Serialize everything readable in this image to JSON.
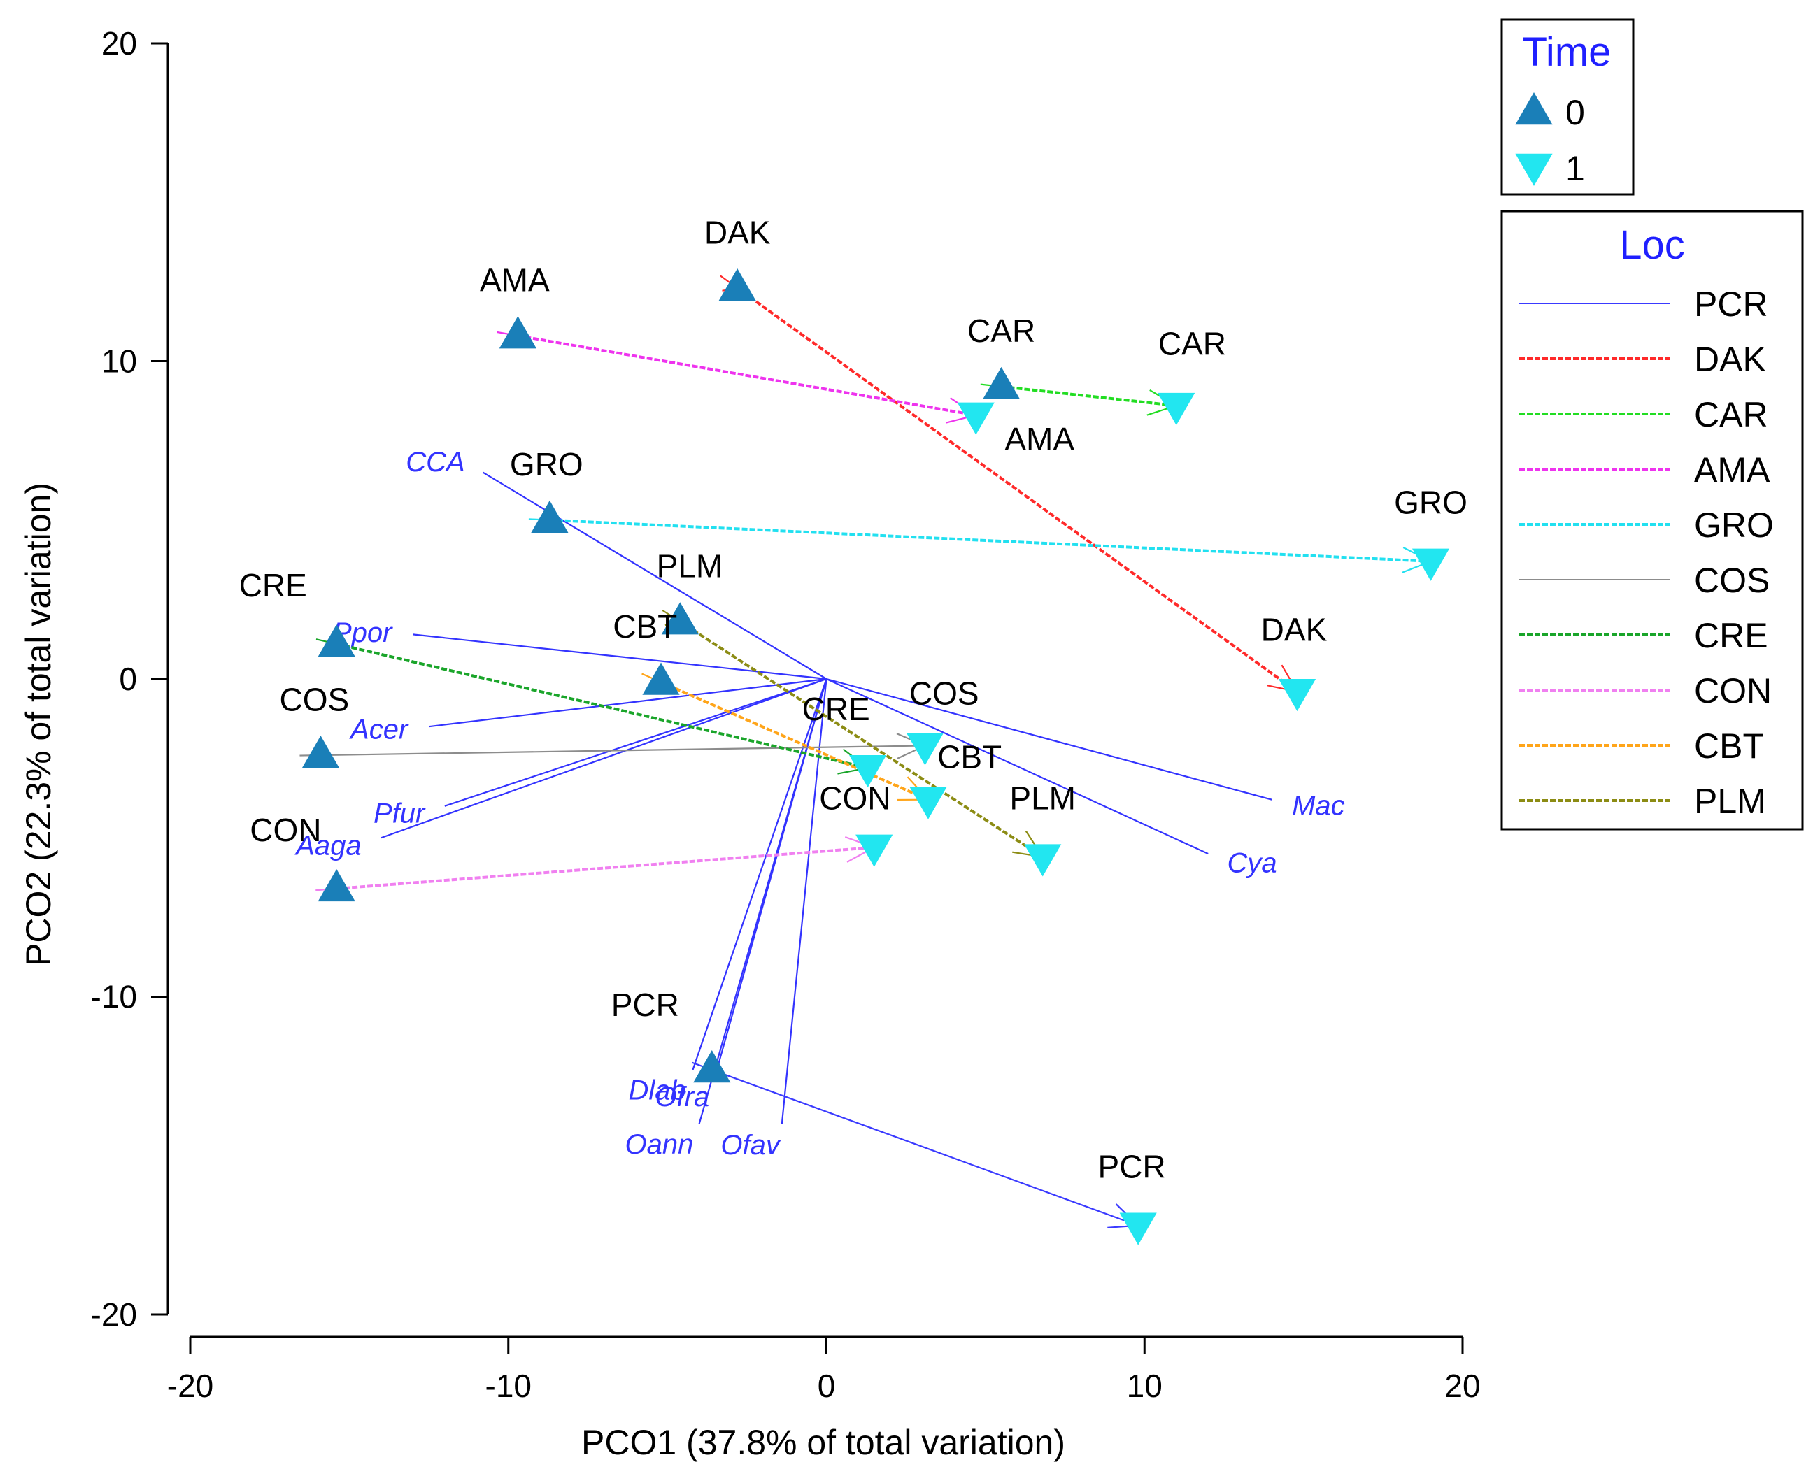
{
  "chart_data": {
    "type": "scatter",
    "xlabel": "PCO1 (37.8% of total variation)",
    "ylabel": "PCO2 (22.3% of total variation)",
    "xlim": [
      -20,
      20
    ],
    "ylim": [
      -20,
      20
    ],
    "xticks": [
      -20,
      -10,
      0,
      10,
      20
    ],
    "yticks": [
      -20,
      -10,
      0,
      10,
      20
    ],
    "grid": false,
    "vector_color": "#3333ff",
    "vectors": [
      {
        "label": "CCA",
        "x": -10.8,
        "y": 6.5
      },
      {
        "label": "Ppor",
        "x": -13.0,
        "y": 1.4
      },
      {
        "label": "Acer",
        "x": -12.5,
        "y": -1.5
      },
      {
        "label": "Aaga",
        "x": -14.0,
        "y": -5.0
      },
      {
        "label": "Pfur",
        "x": -12.0,
        "y": -4.0
      },
      {
        "label": "Mac",
        "x": 14.0,
        "y": -3.8
      },
      {
        "label": "Cya",
        "x": 12.0,
        "y": -5.5
      },
      {
        "label": "Ofra",
        "x": -3.5,
        "y": -12.5
      },
      {
        "label": "Dlab",
        "x": -4.2,
        "y": -12.3
      },
      {
        "label": "Oann",
        "x": -4.0,
        "y": -14.0
      },
      {
        "label": "Ofav",
        "x": -1.4,
        "y": -14.0
      }
    ],
    "legend_time": {
      "title": "Time",
      "entries": [
        {
          "label": "0",
          "marker": "triangle-up",
          "color": "#1a7fb8"
        },
        {
          "label": "1",
          "marker": "triangle-down",
          "color": "#22e6f0"
        }
      ]
    },
    "legend_loc": {
      "title": "Loc",
      "entries": [
        {
          "label": "PCR",
          "color": "#3a3aff",
          "dash": "solid"
        },
        {
          "label": "DAK",
          "color": "#ff2a2a",
          "dash": "dashed"
        },
        {
          "label": "CAR",
          "color": "#22dd22",
          "dash": "dashed"
        },
        {
          "label": "AMA",
          "color": "#ee33ee",
          "dash": "dashed"
        },
        {
          "label": "GRO",
          "color": "#22e0f0",
          "dash": "dashed"
        },
        {
          "label": "COS",
          "color": "#8c8c8c",
          "dash": "solid"
        },
        {
          "label": "CRE",
          "color": "#1aa52a",
          "dash": "dashed"
        },
        {
          "label": "CON",
          "color": "#f080f0",
          "dash": "dashed"
        },
        {
          "label": "CBT",
          "color": "#ffa51a",
          "dash": "dashed"
        },
        {
          "label": "PLM",
          "color": "#8c8c14",
          "dash": "dashed"
        }
      ]
    },
    "trajectories": [
      {
        "loc": "PCR",
        "t0": [
          -3.6,
          -12.3
        ],
        "t1": [
          9.8,
          -17.2
        ]
      },
      {
        "loc": "DAK",
        "t0": [
          -2.8,
          12.3
        ],
        "t1": [
          14.8,
          -0.4
        ]
      },
      {
        "loc": "CAR",
        "t0": [
          5.5,
          9.2
        ],
        "t1": [
          11.0,
          8.6
        ]
      },
      {
        "loc": "AMA",
        "t0": [
          -9.7,
          10.8
        ],
        "t1": [
          4.7,
          8.3
        ]
      },
      {
        "loc": "GRO",
        "t0": [
          -8.7,
          5.0
        ],
        "t1": [
          19.0,
          3.7
        ]
      },
      {
        "loc": "COS",
        "t0": [
          -15.9,
          -2.4
        ],
        "t1": [
          3.1,
          -2.1
        ]
      },
      {
        "loc": "CRE",
        "t0": [
          -15.4,
          1.1
        ],
        "t1": [
          1.3,
          -2.8
        ]
      },
      {
        "loc": "CON",
        "t0": [
          -15.4,
          -6.6
        ],
        "t1": [
          1.5,
          -5.3
        ]
      },
      {
        "loc": "CBT",
        "t0": [
          -5.2,
          -0.1
        ],
        "t1": [
          3.2,
          -3.8
        ]
      },
      {
        "loc": "PLM",
        "t0": [
          -4.6,
          1.8
        ],
        "t1": [
          6.8,
          -5.6
        ]
      }
    ],
    "point_labels": [
      {
        "text": "PCR",
        "x": -5.7,
        "y": -10.6
      },
      {
        "text": "PCR",
        "x": 9.6,
        "y": -15.7
      },
      {
        "text": "DAK",
        "x": -2.8,
        "y": 13.7
      },
      {
        "text": "DAK",
        "x": 14.7,
        "y": 1.2
      },
      {
        "text": "CAR",
        "x": 5.5,
        "y": 10.6
      },
      {
        "text": "CAR",
        "x": 11.5,
        "y": 10.2
      },
      {
        "text": "AMA",
        "x": -9.8,
        "y": 12.2
      },
      {
        "text": "AMA",
        "x": 6.7,
        "y": 7.2
      },
      {
        "text": "GRO",
        "x": -8.8,
        "y": 6.4
      },
      {
        "text": "GRO",
        "x": 19.0,
        "y": 5.2
      },
      {
        "text": "COS",
        "x": -16.1,
        "y": -1.0
      },
      {
        "text": "COS",
        "x": 3.7,
        "y": -0.8
      },
      {
        "text": "CRE",
        "x": -17.4,
        "y": 2.6
      },
      {
        "text": "CRE",
        "x": 0.3,
        "y": -1.3
      },
      {
        "text": "CON",
        "x": -17.0,
        "y": -5.1
      },
      {
        "text": "CON",
        "x": 0.9,
        "y": -4.1
      },
      {
        "text": "CBT",
        "x": -5.7,
        "y": 1.3
      },
      {
        "text": "CBT",
        "x": 4.5,
        "y": -2.8
      },
      {
        "text": "PLM",
        "x": -4.3,
        "y": 3.2
      },
      {
        "text": "PLM",
        "x": 6.8,
        "y": -4.1
      }
    ]
  }
}
